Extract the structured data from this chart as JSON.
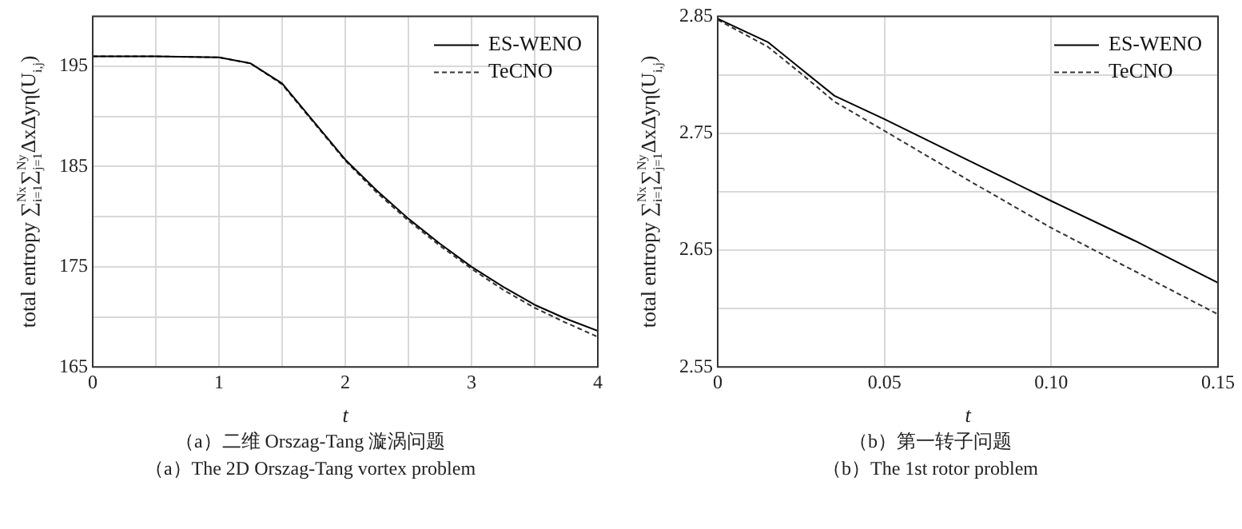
{
  "chart_data": [
    {
      "type": "line",
      "xlabel": "t",
      "ylabel": "total entropy ∑$_{i=1}$$^{Nx}$∑$_{j=1}$$^{Ny}$ΔxΔyη(U$_{i,j}$)",
      "legend": "top right",
      "grid": true,
      "xlim": [
        0,
        4
      ],
      "xticks": [
        0,
        {
          "value": 0.5,
          "label": null
        },
        1,
        {
          "value": 1.5,
          "label": null
        },
        2,
        {
          "value": 2.5,
          "label": null
        },
        3,
        {
          "value": 3.5,
          "label": null
        },
        4
      ],
      "ylim": [
        165,
        200
      ],
      "yticks": [
        165,
        {
          "value": 170,
          "label": null
        },
        175,
        {
          "value": 180,
          "label": null
        },
        185,
        {
          "value": 190,
          "label": null
        },
        195,
        {
          "value": 200,
          "label": null
        }
      ],
      "x": [
        0,
        0.5,
        1,
        1.25,
        1.5,
        1.75,
        2,
        2.25,
        2.5,
        2.75,
        3,
        3.25,
        3.5,
        3.75,
        4
      ],
      "series": [
        {
          "name": "ES-WENO",
          "color": "#000000",
          "line_style": "solid",
          "values": [
            196,
            196,
            195.9,
            195.3,
            193.3,
            189.5,
            185.7,
            182.6,
            179.8,
            177.3,
            175.0,
            173.0,
            171.2,
            169.8,
            168.6
          ]
        },
        {
          "name": "TeCNO",
          "color": "#333333",
          "line_style": "dashed",
          "values": [
            196,
            196,
            195.9,
            195.3,
            193.2,
            189.4,
            185.6,
            182.4,
            179.6,
            177.1,
            174.8,
            172.7,
            170.9,
            169.4,
            168.0
          ]
        }
      ],
      "annotations": [
        "（a）二维 Orszag-Tang 漩涡问题",
        "（a）The 2D Orszag-Tang vortex problem"
      ]
    },
    {
      "type": "line",
      "xlabel": "t",
      "ylabel": "total entropy ∑$_{i=1}$$^{Nx}$∑$_{j=1}$$^{Ny}$ΔxΔyη(U$_{i,j}$)",
      "legend": "top right",
      "grid": true,
      "xlim": [
        0,
        0.15
      ],
      "xticks": [
        0,
        0.05,
        {
          "value": 0.1,
          "label": "0.10"
        },
        0.15
      ],
      "ylim": [
        2.55,
        2.85
      ],
      "yticks": [
        2.55,
        {
          "value": 2.6,
          "label": null
        },
        2.65,
        {
          "value": 2.7,
          "label": null
        },
        2.75,
        {
          "value": 2.8,
          "label": null
        },
        2.85
      ],
      "x": [
        0,
        0.015,
        0.025,
        0.035,
        0.05,
        0.075,
        0.1,
        0.125,
        0.15
      ],
      "series": [
        {
          "name": "ES-WENO",
          "color": "#000000",
          "line_style": "solid",
          "values": [
            2.848,
            2.828,
            2.805,
            2.782,
            2.762,
            2.727,
            2.692,
            2.658,
            2.622
          ]
        },
        {
          "name": "TeCNO",
          "color": "#333333",
          "line_style": "dashed",
          "values": [
            2.847,
            2.824,
            2.801,
            2.777,
            2.752,
            2.71,
            2.669,
            2.632,
            2.595
          ]
        }
      ],
      "annotations": [
        "（b）第一转子问题",
        "（b）The 1st rotor problem"
      ]
    }
  ]
}
